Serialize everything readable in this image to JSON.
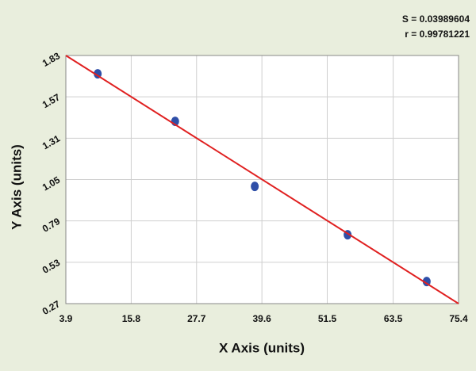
{
  "chart_data": {
    "type": "scatter",
    "annotations": [
      "S = 0.03989604",
      "r = 0.99781221"
    ],
    "x_label": "X Axis (units)",
    "y_label": "Y Axis (units)",
    "series": [
      {
        "kind": "points",
        "color": "#2f4fa8",
        "x": [
          9.7,
          23.8,
          38.3,
          55.2,
          69.6
        ],
        "values": [
          1.715,
          1.416,
          1.007,
          0.703,
          0.409
        ]
      },
      {
        "kind": "fit",
        "color": "#e02020",
        "x": [
          3.9,
          75.4
        ],
        "values": [
          1.83,
          0.27
        ]
      }
    ],
    "xlim": [
      3.9,
      75.4
    ],
    "xticks": [
      3.9,
      15.8,
      27.7,
      39.6,
      51.5,
      63.5,
      75.4
    ],
    "ylim": [
      0.27,
      1.83
    ],
    "yticks": [
      0.27,
      0.53,
      0.79,
      1.05,
      1.31,
      1.57,
      1.83
    ],
    "grid": true
  }
}
